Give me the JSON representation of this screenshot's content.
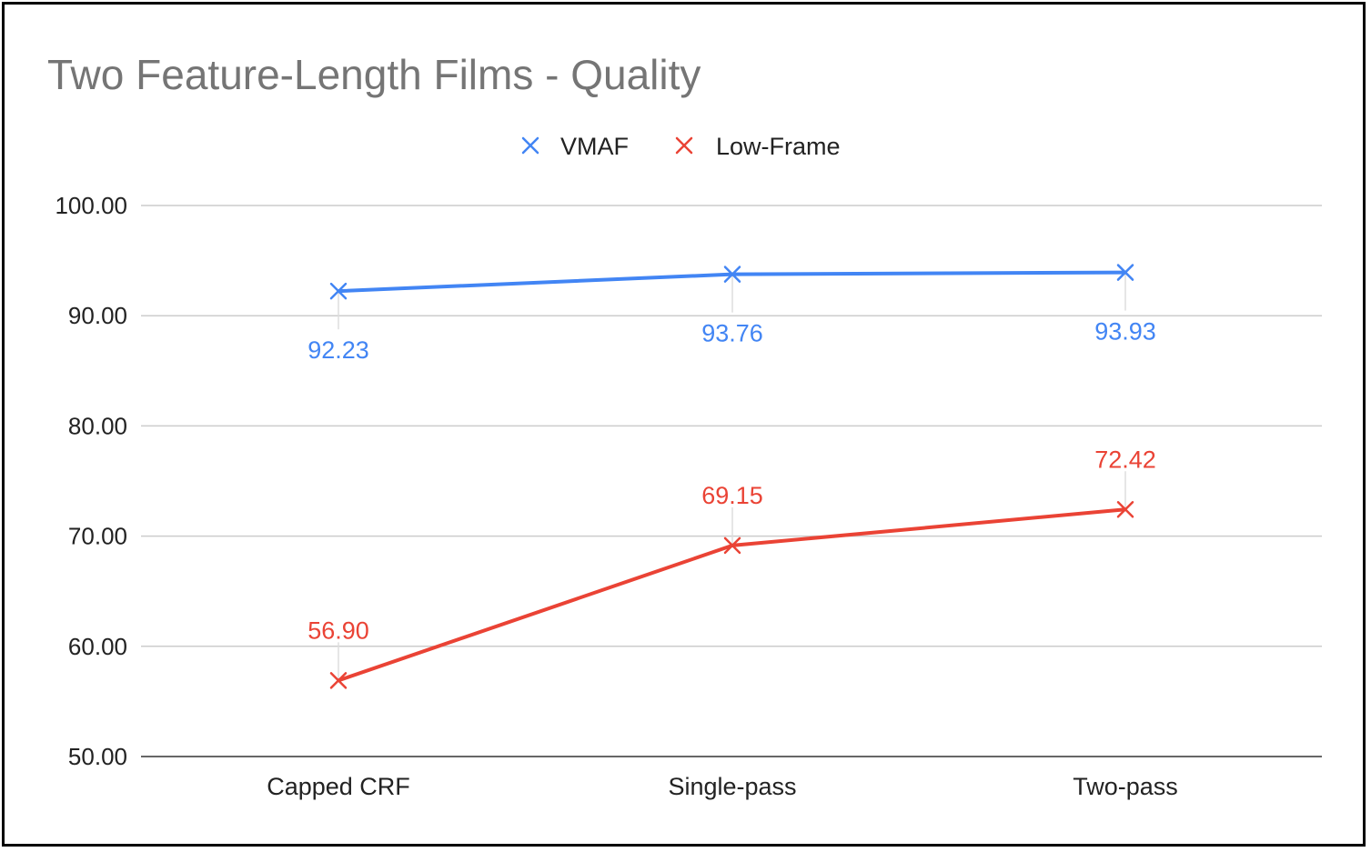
{
  "chart_data": {
    "type": "line",
    "title": "Two Feature-Length Films - Quality",
    "categories": [
      "Capped CRF",
      "Single-pass",
      "Two-pass"
    ],
    "series": [
      {
        "name": "VMAF",
        "values": [
          92.23,
          93.76,
          93.93
        ],
        "color": "#4285F4",
        "labels": [
          "92.23",
          "93.76",
          "93.93"
        ],
        "label_position": "below"
      },
      {
        "name": "Low-Frame",
        "values": [
          56.9,
          69.15,
          72.42
        ],
        "color": "#EA4335",
        "labels": [
          "56.90",
          "69.15",
          "72.42"
        ],
        "label_position": "above"
      }
    ],
    "ylim": [
      50,
      100
    ],
    "yticks": [
      "50.00",
      "60.00",
      "70.00",
      "80.00",
      "90.00",
      "100.00"
    ],
    "xlabel": "",
    "ylabel": "",
    "grid": true,
    "legend_position": "top-center",
    "marker": "x-icon"
  }
}
